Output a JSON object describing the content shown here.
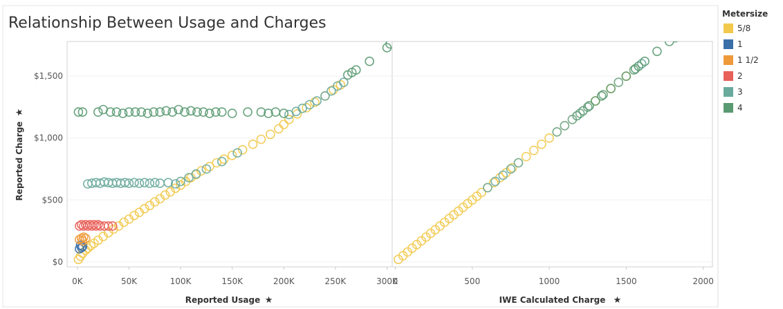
{
  "chart_data": {
    "type": "scatter",
    "title": "Relationship Between Usage and Charges",
    "legend": {
      "title": "Metersize",
      "placement": "right",
      "entries": [
        {
          "name": "5/8",
          "color": "#f2c94c"
        },
        {
          "name": "1",
          "color": "#3b6fa8"
        },
        {
          "name": "1 1/2",
          "color": "#ee9a3a"
        },
        {
          "name": "2",
          "color": "#e8605a"
        },
        {
          "name": "3",
          "color": "#6aaa9c"
        },
        {
          "name": "4",
          "color": "#5a9a72"
        }
      ]
    },
    "panels": [
      {
        "id": "usage",
        "xlabel": "Reported Usage",
        "ylabel": "Reported Charge",
        "xlim": [
          -10000,
          305000
        ],
        "ylim": [
          -40,
          1780
        ],
        "xticks": [
          0,
          50000,
          100000,
          150000,
          200000,
          250000,
          300000
        ],
        "xtick_labels": [
          "0K",
          "50K",
          "100K",
          "150K",
          "200K",
          "250K",
          "300K"
        ],
        "yticks": [
          0,
          500,
          1000,
          1500
        ],
        "ytick_labels": [
          "$0",
          "$500",
          "$1,000",
          "$1,500"
        ],
        "series": [
          {
            "name": "5/8",
            "points": [
              [
                1000,
                20
              ],
              [
                3000,
                45
              ],
              [
                5000,
                70
              ],
              [
                8000,
                95
              ],
              [
                10000,
                110
              ],
              [
                13000,
                130
              ],
              [
                16000,
                150
              ],
              [
                20000,
                175
              ],
              [
                25000,
                205
              ],
              [
                30000,
                235
              ],
              [
                35000,
                265
              ],
              [
                40000,
                290
              ],
              [
                45000,
                320
              ],
              [
                50000,
                345
              ],
              [
                55000,
                375
              ],
              [
                60000,
                400
              ],
              [
                65000,
                430
              ],
              [
                70000,
                455
              ],
              [
                75000,
                485
              ],
              [
                80000,
                510
              ],
              [
                85000,
                540
              ],
              [
                90000,
                565
              ],
              [
                95000,
                595
              ],
              [
                100000,
                620
              ],
              [
                105000,
                650
              ],
              [
                110000,
                680
              ],
              [
                115000,
                705
              ],
              [
                120000,
                735
              ],
              [
                128000,
                770
              ],
              [
                135000,
                800
              ],
              [
                142000,
                830
              ],
              [
                150000,
                860
              ],
              [
                160000,
                905
              ],
              [
                170000,
                950
              ],
              [
                178000,
                990
              ],
              [
                187000,
                1030
              ],
              [
                195000,
                1075
              ],
              [
                200000,
                1110
              ],
              [
                205000,
                1150
              ],
              [
                213000,
                1195
              ],
              [
                222000,
                1245
              ],
              [
                230000,
                1290
              ],
              [
                240000,
                1340
              ],
              [
                248000,
                1390
              ],
              [
                255000,
                1430
              ]
            ]
          },
          {
            "name": "1",
            "points": [
              [
                2000,
                105
              ],
              [
                4000,
                115
              ],
              [
                5000,
                125
              ],
              [
                3000,
                135
              ]
            ]
          },
          {
            "name": "1 1/2",
            "points": [
              [
                2000,
                180
              ],
              [
                4000,
                190
              ],
              [
                6000,
                200
              ],
              [
                8000,
                190
              ],
              [
                5000,
                170
              ]
            ]
          },
          {
            "name": "2",
            "points": [
              [
                2000,
                290
              ],
              [
                4000,
                300
              ],
              [
                6000,
                290
              ],
              [
                8000,
                300
              ],
              [
                10000,
                290
              ],
              [
                12000,
                300
              ],
              [
                14000,
                290
              ],
              [
                16000,
                300
              ],
              [
                18000,
                290
              ],
              [
                20000,
                300
              ],
              [
                22000,
                290
              ],
              [
                26000,
                290
              ],
              [
                30000,
                290
              ],
              [
                34000,
                290
              ]
            ]
          },
          {
            "name": "3",
            "points": [
              [
                10000,
                630
              ],
              [
                14000,
                635
              ],
              [
                18000,
                640
              ],
              [
                22000,
                635
              ],
              [
                26000,
                645
              ],
              [
                30000,
                640
              ],
              [
                34000,
                635
              ],
              [
                38000,
                640
              ],
              [
                42000,
                635
              ],
              [
                46000,
                640
              ],
              [
                50000,
                635
              ],
              [
                55000,
                640
              ],
              [
                60000,
                635
              ],
              [
                65000,
                640
              ],
              [
                70000,
                635
              ],
              [
                75000,
                640
              ],
              [
                80000,
                635
              ],
              [
                88000,
                640
              ],
              [
                95000,
                630
              ],
              [
                100000,
                650
              ],
              [
                108000,
                680
              ],
              [
                115000,
                710
              ],
              [
                125000,
                750
              ],
              [
                140000,
                810
              ],
              [
                155000,
                880
              ],
              [
                205000,
                1190
              ],
              [
                212000,
                1215
              ],
              [
                218000,
                1240
              ],
              [
                225000,
                1270
              ],
              [
                232000,
                1300
              ],
              [
                240000,
                1340
              ],
              [
                246000,
                1380
              ],
              [
                252000,
                1420
              ],
              [
                258000,
                1450
              ]
            ]
          },
          {
            "name": "4",
            "points": [
              [
                1000,
                1210
              ],
              [
                5000,
                1210
              ],
              [
                20000,
                1210
              ],
              [
                25000,
                1230
              ],
              [
                32000,
                1210
              ],
              [
                38000,
                1210
              ],
              [
                44000,
                1200
              ],
              [
                50000,
                1210
              ],
              [
                56000,
                1210
              ],
              [
                62000,
                1210
              ],
              [
                68000,
                1200
              ],
              [
                74000,
                1210
              ],
              [
                80000,
                1210
              ],
              [
                86000,
                1220
              ],
              [
                92000,
                1210
              ],
              [
                98000,
                1230
              ],
              [
                104000,
                1210
              ],
              [
                110000,
                1220
              ],
              [
                116000,
                1210
              ],
              [
                122000,
                1210
              ],
              [
                128000,
                1200
              ],
              [
                134000,
                1210
              ],
              [
                140000,
                1210
              ],
              [
                150000,
                1200
              ],
              [
                165000,
                1210
              ],
              [
                178000,
                1210
              ],
              [
                185000,
                1200
              ],
              [
                192000,
                1210
              ],
              [
                200000,
                1200
              ],
              [
                262000,
                1510
              ],
              [
                266000,
                1530
              ],
              [
                270000,
                1550
              ],
              [
                283000,
                1620
              ],
              [
                300000,
                1730
              ],
              [
                303000,
                1760
              ]
            ]
          }
        ]
      },
      {
        "id": "calc",
        "xlabel": "IWE Calculated Charge",
        "ylabel": "",
        "xlim": [
          -20,
          2060
        ],
        "ylim": [
          -40,
          1780
        ],
        "xticks": [
          0,
          500,
          1000,
          1500,
          2000
        ],
        "xtick_labels": [
          "0",
          "500",
          "1000",
          "1500",
          "2000"
        ],
        "yticks": [
          0,
          500,
          1000,
          1500
        ],
        "ytick_labels": [],
        "series": [
          {
            "name": "5/8",
            "points": [
              [
                20,
                20
              ],
              [
                50,
                50
              ],
              [
                80,
                80
              ],
              [
                110,
                110
              ],
              [
                140,
                140
              ],
              [
                170,
                170
              ],
              [
                200,
                200
              ],
              [
                230,
                230
              ],
              [
                260,
                260
              ],
              [
                290,
                290
              ],
              [
                320,
                320
              ],
              [
                350,
                350
              ],
              [
                380,
                380
              ],
              [
                410,
                410
              ],
              [
                440,
                440
              ],
              [
                470,
                470
              ],
              [
                500,
                500
              ],
              [
                530,
                530
              ],
              [
                560,
                560
              ],
              [
                600,
                600
              ],
              [
                640,
                640
              ],
              [
                680,
                680
              ],
              [
                720,
                720
              ],
              [
                760,
                760
              ],
              [
                800,
                800
              ],
              [
                850,
                850
              ],
              [
                900,
                900
              ],
              [
                950,
                950
              ],
              [
                1000,
                1000
              ],
              [
                1050,
                1050
              ],
              [
                1100,
                1100
              ],
              [
                1150,
                1150
              ],
              [
                1200,
                1200
              ],
              [
                1250,
                1250
              ],
              [
                1300,
                1300
              ],
              [
                1350,
                1350
              ],
              [
                1400,
                1400
              ],
              [
                1450,
                1450
              ],
              [
                1500,
                1500
              ],
              [
                1550,
                1550
              ]
            ]
          },
          {
            "name": "3",
            "points": [
              [
                600,
                600
              ],
              [
                650,
                650
              ],
              [
                700,
                700
              ],
              [
                750,
                750
              ],
              [
                800,
                800
              ],
              [
                1050,
                1050
              ],
              [
                1100,
                1100
              ],
              [
                1150,
                1150
              ],
              [
                1200,
                1200
              ],
              [
                1250,
                1250
              ],
              [
                1350,
                1350
              ],
              [
                1450,
                1450
              ],
              [
                1550,
                1550
              ],
              [
                1600,
                1600
              ]
            ]
          },
          {
            "name": "4",
            "points": [
              [
                1180,
                1180
              ],
              [
                1220,
                1220
              ],
              [
                1260,
                1260
              ],
              [
                1300,
                1300
              ],
              [
                1340,
                1340
              ],
              [
                1400,
                1400
              ],
              [
                1500,
                1500
              ],
              [
                1560,
                1560
              ],
              [
                1580,
                1580
              ],
              [
                1620,
                1620
              ],
              [
                1700,
                1700
              ],
              [
                1780,
                1780
              ],
              [
                1820,
                1810
              ],
              [
                1840,
                1820
              ]
            ]
          }
        ]
      }
    ]
  }
}
